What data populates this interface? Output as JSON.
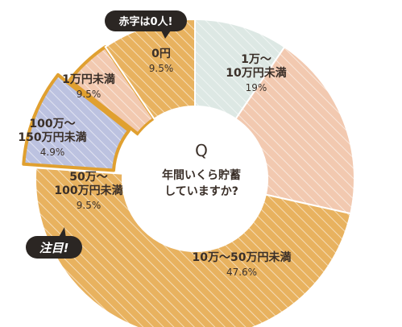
{
  "chart_data": {
    "type": "pie",
    "style": "donut",
    "center_text": [
      "Q",
      "年間いくら貯蓄",
      "していますか?"
    ],
    "slices": [
      {
        "label": [
          "0円"
        ],
        "value": 9.5,
        "value_label": "9.5%",
        "color": "#dde8e4"
      },
      {
        "label": [
          "1万～",
          "10万円未満"
        ],
        "value": 19,
        "value_label": "19%",
        "color": "#f2c9b0"
      },
      {
        "label": [
          "10万～50万円未満"
        ],
        "value": 47.6,
        "value_label": "47.6%",
        "color": "#e8b25f"
      },
      {
        "label": [
          "50万～",
          "100万円未満"
        ],
        "value": 9.5,
        "value_label": "9.5%",
        "color": "#bcc2e0"
      },
      {
        "label": [
          "100万～",
          "150万円未満"
        ],
        "value": 4.9,
        "value_label": "4.9%",
        "color": "#f2c9b0"
      },
      {
        "label": [
          "1万円未満"
        ],
        "value": 9.5,
        "value_label": "9.5%",
        "color": "#e8b25f"
      }
    ],
    "highlight_border_color": "#e0a030",
    "callouts": [
      {
        "text": "赤字は0人!"
      },
      {
        "text": "注目!"
      }
    ]
  }
}
